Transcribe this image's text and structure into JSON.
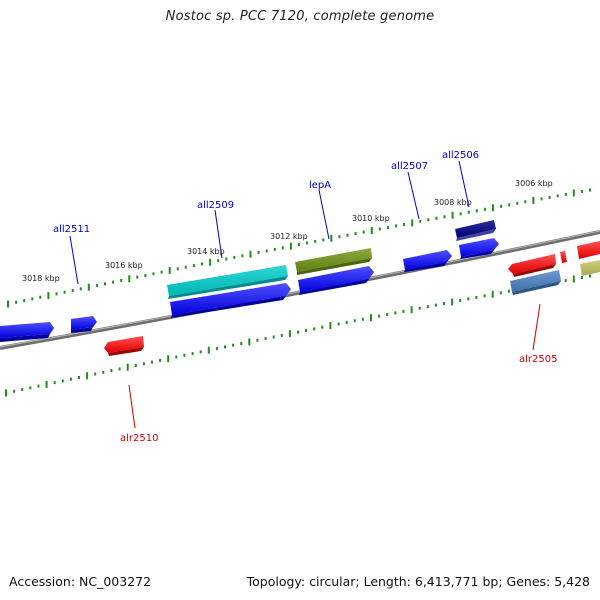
{
  "title": "Nostoc sp. PCC 7120, complete genome",
  "accession": "Accession: NC_003272",
  "summary": "Topology: circular; Length: 6,413,771 bp; Genes: 5,428",
  "colors": {
    "forward_label": "#0000cc",
    "reverse_label": "#cc0000",
    "backbone": "#808080",
    "tick": "#228b22"
  },
  "tick_labels": [
    "3018 kbp",
    "3016 kbp",
    "3014 kbp",
    "3012 kbp",
    "3010 kbp",
    "3008 kbp",
    "3006 kbp"
  ],
  "genes": [
    {
      "name": "all2511",
      "strand": "forward"
    },
    {
      "name": "all2509",
      "strand": "forward"
    },
    {
      "name": "lepA",
      "strand": "forward"
    },
    {
      "name": "all2507",
      "strand": "forward"
    },
    {
      "name": "all2506",
      "strand": "forward"
    },
    {
      "name": "alr2505",
      "strand": "reverse"
    },
    {
      "name": "alr2510",
      "strand": "reverse"
    }
  ]
}
